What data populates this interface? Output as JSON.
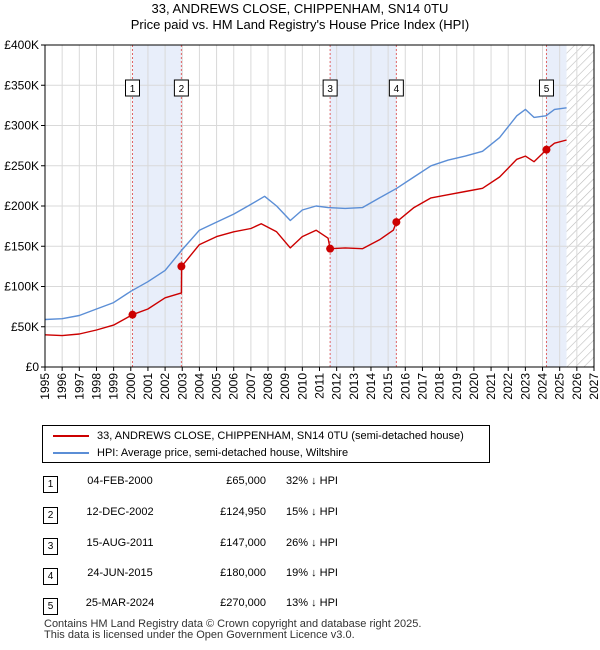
{
  "title_line1": "33, ANDREWS CLOSE, CHIPPENHAM, SN14 0TU",
  "title_line2": "Price paid vs. HM Land Registry's House Price Index (HPI)",
  "colors": {
    "property": "#cc0000",
    "hpi": "#5b8ed6",
    "band": "#e8eefa",
    "vline": "#e06666"
  },
  "chart_data": {
    "type": "line",
    "title": "Price paid vs. HM Land Registry's House Price Index (HPI)",
    "xlim": [
      1995,
      2027
    ],
    "ylim": [
      0,
      400000
    ],
    "x_ticks": [
      "1995",
      "1996",
      "1997",
      "1998",
      "1999",
      "2000",
      "2001",
      "2002",
      "2003",
      "2004",
      "2005",
      "2006",
      "2007",
      "2008",
      "2009",
      "2010",
      "2011",
      "2012",
      "2013",
      "2014",
      "2015",
      "2016",
      "2017",
      "2018",
      "2019",
      "2020",
      "2021",
      "2022",
      "2023",
      "2024",
      "2025",
      "2026",
      "2027"
    ],
    "y_ticks": [
      {
        "value": 0,
        "label": "£0"
      },
      {
        "value": 50000,
        "label": "£50K"
      },
      {
        "value": 100000,
        "label": "£100K"
      },
      {
        "value": 150000,
        "label": "£150K"
      },
      {
        "value": 200000,
        "label": "£200K"
      },
      {
        "value": 250000,
        "label": "£250K"
      },
      {
        "value": 300000,
        "label": "£300K"
      },
      {
        "value": 350000,
        "label": "£350K"
      },
      {
        "value": 400000,
        "label": "£400K"
      }
    ],
    "grid": true,
    "data_end_year": 2025.4,
    "shaded_periods": [
      [
        2000.1,
        2002.95
      ],
      [
        2011.6,
        2015.5
      ],
      [
        2024.2,
        2025.4
      ]
    ],
    "series": [
      {
        "name": "33, ANDREWS CLOSE, CHIPPENHAM, SN14 0TU (semi-detached house)",
        "color": "#cc0000",
        "points": [
          [
            1995.0,
            40000
          ],
          [
            1996.0,
            39000
          ],
          [
            1997.0,
            41000
          ],
          [
            1998.0,
            46000
          ],
          [
            1999.0,
            52000
          ],
          [
            2000.1,
            65000
          ],
          [
            2001.0,
            72000
          ],
          [
            2002.0,
            86000
          ],
          [
            2002.95,
            92000
          ],
          [
            2002.96,
            124950
          ],
          [
            2004.0,
            152000
          ],
          [
            2005.0,
            162000
          ],
          [
            2006.0,
            168000
          ],
          [
            2007.0,
            172000
          ],
          [
            2007.6,
            178000
          ],
          [
            2008.5,
            168000
          ],
          [
            2009.3,
            148000
          ],
          [
            2010.0,
            162000
          ],
          [
            2010.8,
            170000
          ],
          [
            2011.5,
            160000
          ],
          [
            2011.62,
            147000
          ],
          [
            2012.5,
            148000
          ],
          [
            2013.5,
            147000
          ],
          [
            2014.5,
            158000
          ],
          [
            2015.3,
            170000
          ],
          [
            2015.48,
            180000
          ],
          [
            2016.5,
            198000
          ],
          [
            2017.5,
            210000
          ],
          [
            2018.5,
            214000
          ],
          [
            2019.5,
            218000
          ],
          [
            2020.5,
            222000
          ],
          [
            2021.5,
            236000
          ],
          [
            2022.5,
            258000
          ],
          [
            2023.0,
            262000
          ],
          [
            2023.5,
            255000
          ],
          [
            2024.23,
            270000
          ],
          [
            2024.7,
            278000
          ],
          [
            2025.4,
            282000
          ]
        ]
      },
      {
        "name": "HPI: Average price, semi-detached house, Wiltshire",
        "color": "#5b8ed6",
        "points": [
          [
            1995.0,
            59000
          ],
          [
            1996.0,
            60000
          ],
          [
            1997.0,
            64000
          ],
          [
            1998.0,
            72000
          ],
          [
            1999.0,
            80000
          ],
          [
            2000.0,
            94000
          ],
          [
            2001.0,
            106000
          ],
          [
            2002.0,
            120000
          ],
          [
            2003.0,
            146000
          ],
          [
            2004.0,
            170000
          ],
          [
            2005.0,
            180000
          ],
          [
            2006.0,
            190000
          ],
          [
            2007.0,
            202000
          ],
          [
            2007.8,
            212000
          ],
          [
            2008.5,
            200000
          ],
          [
            2009.3,
            182000
          ],
          [
            2010.0,
            195000
          ],
          [
            2010.8,
            200000
          ],
          [
            2011.5,
            198000
          ],
          [
            2012.5,
            197000
          ],
          [
            2013.5,
            198000
          ],
          [
            2014.5,
            210000
          ],
          [
            2015.5,
            222000
          ],
          [
            2016.5,
            236000
          ],
          [
            2017.5,
            250000
          ],
          [
            2018.5,
            257000
          ],
          [
            2019.5,
            262000
          ],
          [
            2020.5,
            268000
          ],
          [
            2021.5,
            285000
          ],
          [
            2022.5,
            312000
          ],
          [
            2023.0,
            320000
          ],
          [
            2023.5,
            310000
          ],
          [
            2024.2,
            312000
          ],
          [
            2024.7,
            320000
          ],
          [
            2025.4,
            322000
          ]
        ]
      }
    ],
    "markers": [
      {
        "label": "1",
        "x": 2000.1,
        "y": 65000
      },
      {
        "label": "2",
        "x": 2002.95,
        "y": 124950
      },
      {
        "label": "3",
        "x": 2011.62,
        "y": 147000
      },
      {
        "label": "4",
        "x": 2015.48,
        "y": 180000
      },
      {
        "label": "5",
        "x": 2024.23,
        "y": 270000
      }
    ]
  },
  "legend": {
    "property_label": "33, ANDREWS CLOSE, CHIPPENHAM, SN14 0TU (semi-detached house)",
    "hpi_label": "HPI: Average price, semi-detached house, Wiltshire"
  },
  "transactions": [
    {
      "num": "1",
      "date": "04-FEB-2000",
      "price": "£65,000",
      "hpi": "32% ↓ HPI"
    },
    {
      "num": "2",
      "date": "12-DEC-2002",
      "price": "£124,950",
      "hpi": "15% ↓ HPI"
    },
    {
      "num": "3",
      "date": "15-AUG-2011",
      "price": "£147,000",
      "hpi": "26% ↓ HPI"
    },
    {
      "num": "4",
      "date": "24-JUN-2015",
      "price": "£180,000",
      "hpi": "19% ↓ HPI"
    },
    {
      "num": "5",
      "date": "25-MAR-2024",
      "price": "£270,000",
      "hpi": "13% ↓ HPI"
    }
  ],
  "footer": {
    "line1": "Contains HM Land Registry data © Crown copyright and database right 2025.",
    "line2": "This data is licensed under the Open Government Licence v3.0."
  }
}
